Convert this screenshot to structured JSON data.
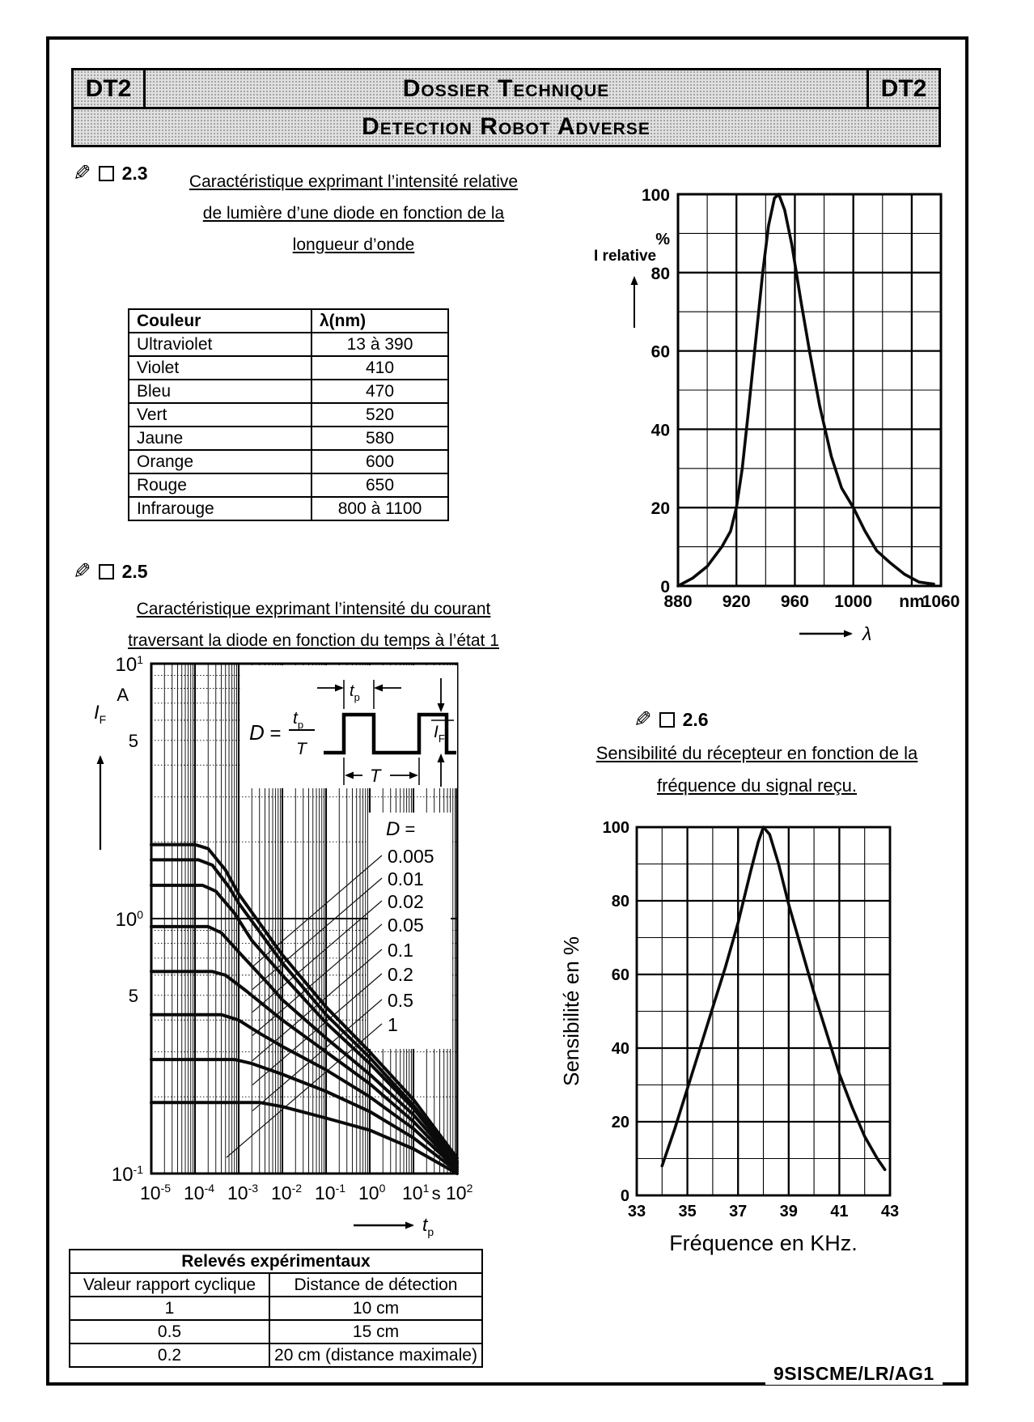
{
  "header": {
    "badge_left": "DT2",
    "badge_right": "DT2",
    "title": "Dossier Technique",
    "subtitle": "Detection Robot Adverse"
  },
  "sections": {
    "s23": {
      "number": "2.3",
      "title_lines": [
        "Caractéristique exprimant l’intensité relative",
        "de lumière d’une diode en fonction de la",
        "longueur d’onde"
      ]
    },
    "s25": {
      "number": "2.5",
      "title_lines": [
        "Caractéristique exprimant l’intensité du courant",
        "traversant la diode en fonction du temps à l’état 1"
      ]
    },
    "s26": {
      "number": "2.6",
      "title_lines": [
        "Sensibilité du récepteur en fonction de la",
        "fréquence du signal reçu."
      ]
    }
  },
  "color_table": {
    "headers": [
      "Couleur",
      "λ(nm)"
    ],
    "rows": [
      [
        "Ultraviolet",
        "13 à 390"
      ],
      [
        "Violet",
        "410"
      ],
      [
        "Bleu",
        "470"
      ],
      [
        "Vert",
        "520"
      ],
      [
        "Jaune",
        "580"
      ],
      [
        "Orange",
        "600"
      ],
      [
        "Rouge",
        "650"
      ],
      [
        "Infrarouge",
        "800 à 1100"
      ]
    ]
  },
  "releves_table": {
    "title": "Relevés expérimentaux",
    "headers": [
      "Valeur rapport cyclique",
      "Distance de détection"
    ],
    "rows": [
      [
        "1",
        "10 cm"
      ],
      [
        "0.5",
        "15 cm"
      ],
      [
        "0.2",
        "20 cm (distance maximale)"
      ]
    ]
  },
  "footer": {
    "reference": "9SISCME/LR/AG1"
  },
  "chart_data": [
    {
      "id": "led_relative_intensity",
      "type": "line",
      "title": "Caractéristique exprimant l’intensité relative de lumière d’une diode en fonction de la longueur d’onde",
      "xlabel": "λ",
      "x_unit": "nm",
      "ylabel": "I relative",
      "y_unit": "%",
      "xlim": [
        880,
        1060
      ],
      "ylim": [
        0,
        100
      ],
      "x_ticks": [
        880,
        920,
        960,
        1000,
        1060
      ],
      "y_ticks": [
        0,
        20,
        40,
        60,
        80,
        100
      ],
      "grid_minor_x": 20,
      "grid_bold_x": 40,
      "grid_minor_y": 10,
      "grid_bold_y": 20,
      "peak": {
        "x": 947,
        "y": 100
      },
      "points": [
        [
          880,
          0
        ],
        [
          890,
          2
        ],
        [
          900,
          5
        ],
        [
          910,
          10
        ],
        [
          916,
          14
        ],
        [
          920,
          20
        ],
        [
          924,
          30
        ],
        [
          928,
          44
        ],
        [
          933,
          62
        ],
        [
          938,
          80
        ],
        [
          942,
          92
        ],
        [
          946,
          99
        ],
        [
          949,
          100
        ],
        [
          953,
          96
        ],
        [
          958,
          87
        ],
        [
          964,
          73
        ],
        [
          970,
          60
        ],
        [
          977,
          46
        ],
        [
          985,
          33
        ],
        [
          992,
          25
        ],
        [
          1000,
          20
        ],
        [
          1008,
          14
        ],
        [
          1016,
          9
        ],
        [
          1025,
          6
        ],
        [
          1035,
          3
        ],
        [
          1045,
          1
        ],
        [
          1055,
          0.5
        ]
      ]
    },
    {
      "id": "diode_pulse_current",
      "type": "line",
      "scale": "log-log",
      "title": "Caractéristique exprimant l’intensité du courant traversant la diode en fonction du temps à l’état 1",
      "xlabel": "tp",
      "x_unit": "s",
      "ylabel": "IF",
      "y_unit": "A",
      "xlim": [
        1e-05,
        100
      ],
      "ylim": [
        0.1,
        10
      ],
      "x_ticks": [
        {
          "m": "10",
          "e": "-5"
        },
        {
          "m": "10",
          "e": "-4"
        },
        {
          "m": "10",
          "e": "-3"
        },
        {
          "m": "10",
          "e": "-2"
        },
        {
          "m": "10",
          "e": "-1"
        },
        {
          "m": "10",
          "e": "0"
        },
        {
          "m": "10",
          "e": "1"
        },
        {
          "m": "10",
          "e": "2"
        }
      ],
      "y_ticks": [
        {
          "v": 10,
          "m": "10",
          "e": "1"
        },
        {
          "v": 5,
          "m": "5"
        },
        {
          "v": 1,
          "m": "10",
          "e": "0"
        },
        {
          "v": 0.5,
          "m": "5"
        },
        {
          "v": 0.1,
          "m": "10",
          "e": "-1"
        }
      ],
      "legend_title": "D =",
      "inset": {
        "duty_symbol": "D",
        "numerator": "tp",
        "denominator": "T",
        "pulse_width_label": "tp",
        "period_label": "T",
        "amplitude_label": "IF"
      },
      "series": [
        {
          "name": "0.005",
          "points": [
            [
              1e-05,
              1.95
            ],
            [
              0.0001,
              1.95
            ],
            [
              0.0002,
              1.88
            ],
            [
              0.0005,
              1.55
            ],
            [
              0.001,
              1.25
            ],
            [
              0.01,
              0.72
            ],
            [
              0.1,
              0.45
            ],
            [
              1,
              0.3
            ],
            [
              10,
              0.195
            ],
            [
              100,
              0.115
            ]
          ]
        },
        {
          "name": "0.01",
          "points": [
            [
              1e-05,
              1.7
            ],
            [
              0.00012,
              1.7
            ],
            [
              0.00025,
              1.62
            ],
            [
              0.0006,
              1.33
            ],
            [
              0.001,
              1.15
            ],
            [
              0.01,
              0.67
            ],
            [
              0.1,
              0.42
            ],
            [
              1,
              0.285
            ],
            [
              10,
              0.185
            ],
            [
              100,
              0.112
            ]
          ]
        },
        {
          "name": "0.02",
          "points": [
            [
              1e-05,
              1.35
            ],
            [
              0.00015,
              1.35
            ],
            [
              0.0003,
              1.28
            ],
            [
              0.0008,
              1.05
            ],
            [
              0.002,
              0.82
            ],
            [
              0.01,
              0.6
            ],
            [
              0.1,
              0.39
            ],
            [
              1,
              0.27
            ],
            [
              10,
              0.18
            ],
            [
              100,
              0.11
            ]
          ]
        },
        {
          "name": "0.05",
          "points": [
            [
              1e-05,
              0.93
            ],
            [
              0.0002,
              0.93
            ],
            [
              0.0004,
              0.88
            ],
            [
              0.001,
              0.74
            ],
            [
              0.005,
              0.55
            ],
            [
              0.01,
              0.48
            ],
            [
              0.1,
              0.34
            ],
            [
              1,
              0.245
            ],
            [
              10,
              0.17
            ],
            [
              100,
              0.108
            ]
          ]
        },
        {
          "name": "0.1",
          "points": [
            [
              1e-05,
              0.62
            ],
            [
              0.00025,
              0.62
            ],
            [
              0.0005,
              0.6
            ],
            [
              0.0015,
              0.52
            ],
            [
              0.01,
              0.4
            ],
            [
              0.1,
              0.3
            ],
            [
              1,
              0.225
            ],
            [
              10,
              0.16
            ],
            [
              100,
              0.106
            ]
          ]
        },
        {
          "name": "0.2",
          "points": [
            [
              1e-05,
              0.42
            ],
            [
              0.0004,
              0.42
            ],
            [
              0.001,
              0.4
            ],
            [
              0.003,
              0.355
            ],
            [
              0.01,
              0.315
            ],
            [
              0.1,
              0.255
            ],
            [
              1,
              0.2
            ],
            [
              10,
              0.15
            ],
            [
              100,
              0.104
            ]
          ]
        },
        {
          "name": "0.5",
          "points": [
            [
              1e-05,
              0.28
            ],
            [
              0.0008,
              0.28
            ],
            [
              0.002,
              0.27
            ],
            [
              0.01,
              0.245
            ],
            [
              0.1,
              0.21
            ],
            [
              1,
              0.175
            ],
            [
              10,
              0.138
            ],
            [
              100,
              0.102
            ]
          ]
        },
        {
          "name": "1",
          "points": [
            [
              1e-05,
              0.19
            ],
            [
              0.003,
              0.19
            ],
            [
              0.01,
              0.183
            ],
            [
              0.1,
              0.165
            ],
            [
              1,
              0.148
            ],
            [
              10,
              0.125
            ],
            [
              100,
              0.1
            ]
          ]
        }
      ]
    },
    {
      "id": "receiver_sensitivity",
      "type": "line",
      "title": "Sensibilité du récepteur en fonction de la fréquence du signal reçu.",
      "xlabel": "Fréquence en KHz.",
      "ylabel": "Sensibilité en %",
      "xlim": [
        33,
        43
      ],
      "ylim": [
        0,
        100
      ],
      "x_ticks": [
        33,
        35,
        37,
        39,
        41,
        43
      ],
      "y_ticks": [
        0,
        20,
        40,
        60,
        80,
        100
      ],
      "grid_minor_x": 1,
      "grid_bold_x": 2,
      "grid_minor_y": 10,
      "grid_bold_y": 20,
      "peak": {
        "x": 38,
        "y": 100
      },
      "points": [
        [
          34,
          8
        ],
        [
          34.5,
          18
        ],
        [
          35,
          29
        ],
        [
          35.5,
          40
        ],
        [
          36,
          51
        ],
        [
          36.5,
          62
        ],
        [
          37,
          74
        ],
        [
          37.5,
          88
        ],
        [
          37.8,
          96
        ],
        [
          38,
          100
        ],
        [
          38.25,
          98
        ],
        [
          38.6,
          90
        ],
        [
          39,
          79
        ],
        [
          39.5,
          67
        ],
        [
          40,
          55
        ],
        [
          40.5,
          44
        ],
        [
          41,
          33
        ],
        [
          41.5,
          24
        ],
        [
          42,
          16
        ],
        [
          42.5,
          10
        ],
        [
          42.8,
          7
        ]
      ]
    }
  ]
}
